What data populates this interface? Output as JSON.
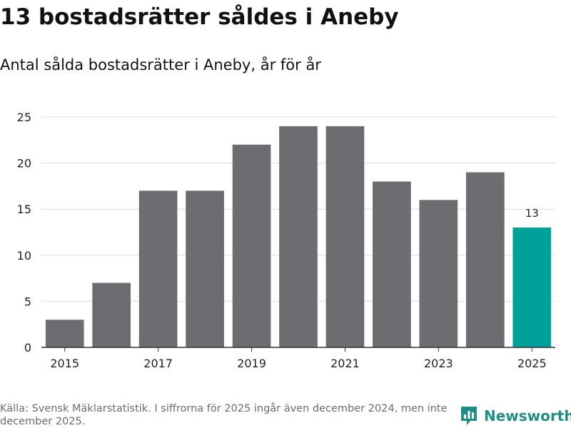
{
  "header": {
    "title": "13 bostadsrätter såldes i Aneby",
    "subtitle": "Antal sålda bostadsrätter i Aneby, år för år"
  },
  "chart_data": {
    "type": "bar",
    "title": "13 bostadsrätter såldes i Aneby",
    "subtitle": "Antal sålda bostadsrätter i Aneby, år för år",
    "xlabel": "",
    "ylabel": "",
    "categories": [
      "2015",
      "2016",
      "2017",
      "2018",
      "2019",
      "2020",
      "2021",
      "2022",
      "2023",
      "2024",
      "2025"
    ],
    "values": [
      3,
      7,
      17,
      17,
      22,
      24,
      24,
      18,
      16,
      19,
      13
    ],
    "x_tick_labels": [
      "2015",
      "2017",
      "2019",
      "2021",
      "2023",
      "2025"
    ],
    "y_ticks": [
      0,
      5,
      10,
      15,
      20,
      25
    ],
    "ylim": [
      0,
      25
    ],
    "grid": true,
    "highlight_index": 10,
    "highlight_label": "13",
    "colors": {
      "bar": "#6d6c71",
      "highlight": "#00a19a",
      "grid": "#dcdcdc",
      "axis": "#333333"
    }
  },
  "footer": {
    "source_note": "Källa: Svensk Mäklarstatistik. I siffrorna för 2025 ingår även december 2024, men inte december 2025.",
    "brand": "Newsworthy",
    "brand_icon": "newsworthy-logo-icon",
    "brand_color": "#1f8f86"
  }
}
